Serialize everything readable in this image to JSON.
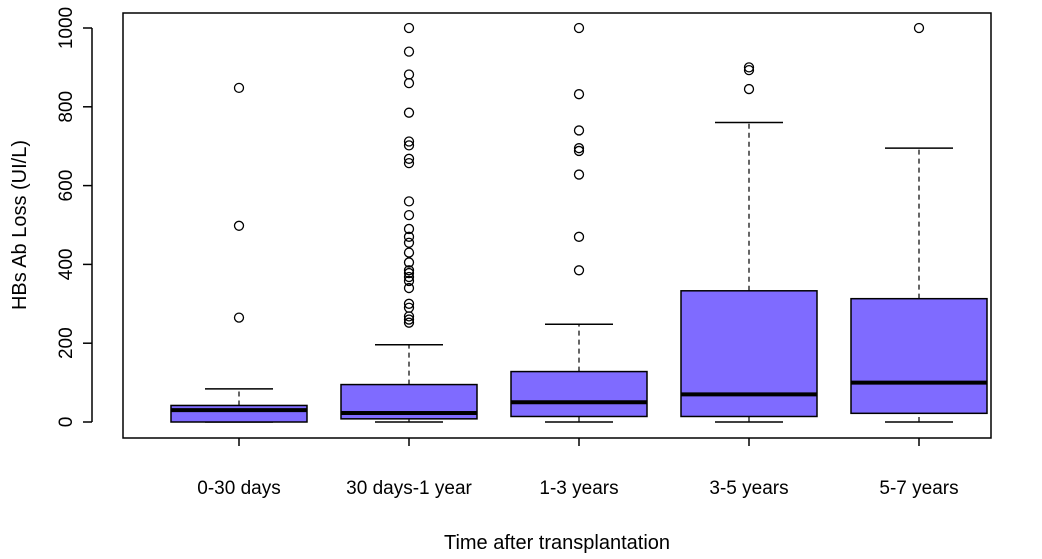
{
  "chart_data": {
    "type": "boxplot",
    "xlabel": "Time after transplantation",
    "ylabel": "HBs Ab Loss (UI/L)",
    "ylim": [
      -40,
      1040
    ],
    "yticks": [
      "0",
      "200",
      "400",
      "600",
      "800",
      "1000"
    ],
    "box_color": "#7f6bff",
    "categories": [
      {
        "label": "0-30 days",
        "whisker_low": 0,
        "q1": 0,
        "median": 30,
        "q3": 42,
        "whisker_high": 84,
        "outliers": [
          265,
          498,
          848
        ]
      },
      {
        "label": "30 days-1 year",
        "whisker_low": 0,
        "q1": 8,
        "median": 23,
        "q3": 95,
        "whisker_high": 196,
        "outliers": [
          252,
          260,
          268,
          290,
          300,
          340,
          358,
          368,
          378,
          385,
          405,
          430,
          455,
          470,
          490,
          525,
          560,
          657,
          668,
          702,
          712,
          785,
          860,
          882,
          940,
          1000
        ]
      },
      {
        "label": "1-3 years",
        "whisker_low": 0,
        "q1": 14,
        "median": 50,
        "q3": 128,
        "whisker_high": 248,
        "outliers": [
          385,
          470,
          628,
          688,
          695,
          740,
          832,
          1000
        ]
      },
      {
        "label": "3-5 years",
        "whisker_low": 0,
        "q1": 14,
        "median": 70,
        "q3": 333,
        "whisker_high": 760,
        "outliers": [
          845,
          893,
          900
        ]
      },
      {
        "label": "5-7 years",
        "whisker_low": 0,
        "q1": 22,
        "median": 100,
        "q3": 313,
        "whisker_high": 695,
        "outliers": [
          1000
        ]
      }
    ]
  }
}
